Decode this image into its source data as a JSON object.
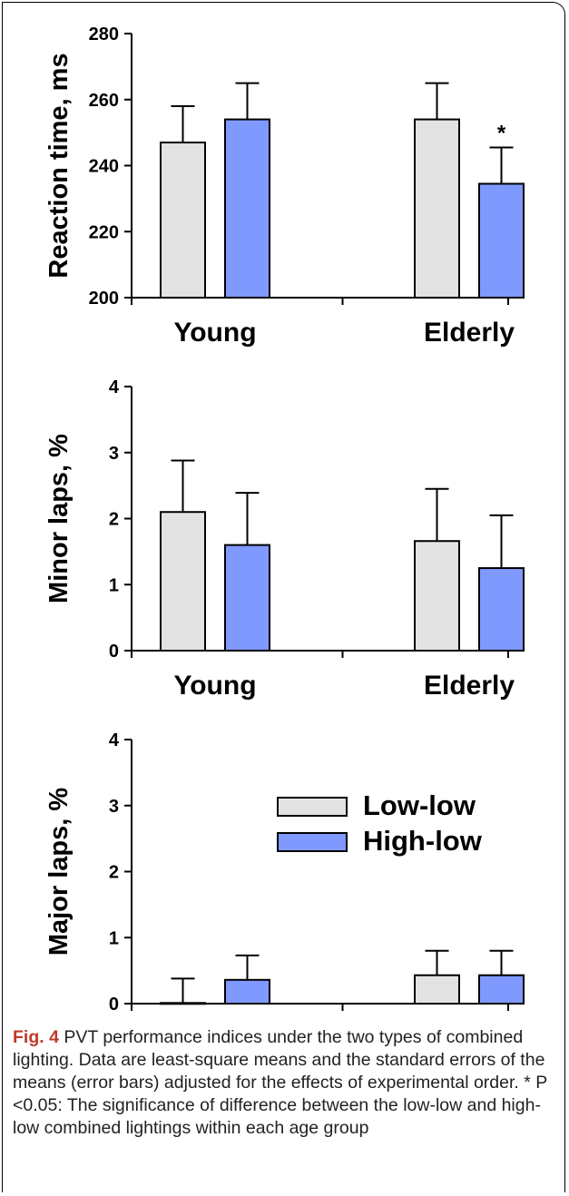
{
  "colors": {
    "low_low": "#e3e3e3",
    "high_low": "#7f99ff",
    "caption_label": "#c0392b"
  },
  "chart_data": [
    {
      "type": "bar",
      "ylabel": "Reaction time, ms",
      "categories": [
        "Young",
        "Elderly"
      ],
      "ylim": [
        200,
        280
      ],
      "yticks": [
        200,
        220,
        240,
        260,
        280
      ],
      "series": [
        {
          "name": "Low-low",
          "values": [
            247,
            254
          ],
          "errors": [
            11,
            11
          ]
        },
        {
          "name": "High-low",
          "values": [
            254,
            234.5
          ],
          "errors": [
            11,
            11
          ]
        }
      ],
      "annotations": [
        {
          "text": "*",
          "category": "Elderly",
          "series": "High-low"
        }
      ]
    },
    {
      "type": "bar",
      "ylabel": "Minor laps, %",
      "categories": [
        "Young",
        "Elderly"
      ],
      "ylim": [
        0,
        4
      ],
      "yticks": [
        0,
        1,
        2,
        3,
        4
      ],
      "series": [
        {
          "name": "Low-low",
          "values": [
            2.1,
            1.66
          ],
          "errors": [
            0.78,
            0.79
          ]
        },
        {
          "name": "High-low",
          "values": [
            1.6,
            1.25
          ],
          "errors": [
            0.79,
            0.8
          ]
        }
      ]
    },
    {
      "type": "bar",
      "ylabel": "Major laps, %",
      "categories": [
        "Young",
        "Elderly"
      ],
      "ylim": [
        0,
        4
      ],
      "yticks": [
        0,
        1,
        2,
        3,
        4
      ],
      "series": [
        {
          "name": "Low-low",
          "values": [
            0.01,
            0.43
          ],
          "errors": [
            0.37,
            0.37
          ]
        },
        {
          "name": "High-low",
          "values": [
            0.36,
            0.43
          ],
          "errors": [
            0.37,
            0.37
          ]
        }
      ],
      "legend": {
        "position": "top-right",
        "entries": [
          "Low-low",
          "High-low"
        ]
      }
    }
  ],
  "caption": {
    "label": "Fig. 4",
    "text": "PVT performance indices under the two types of combined lighting. Data are least-square means and the standard errors of the means (error bars) adjusted for the effects of experimental order. * P <0.05: The significance of difference between the low-low and high-low combined lightings within each age group"
  }
}
